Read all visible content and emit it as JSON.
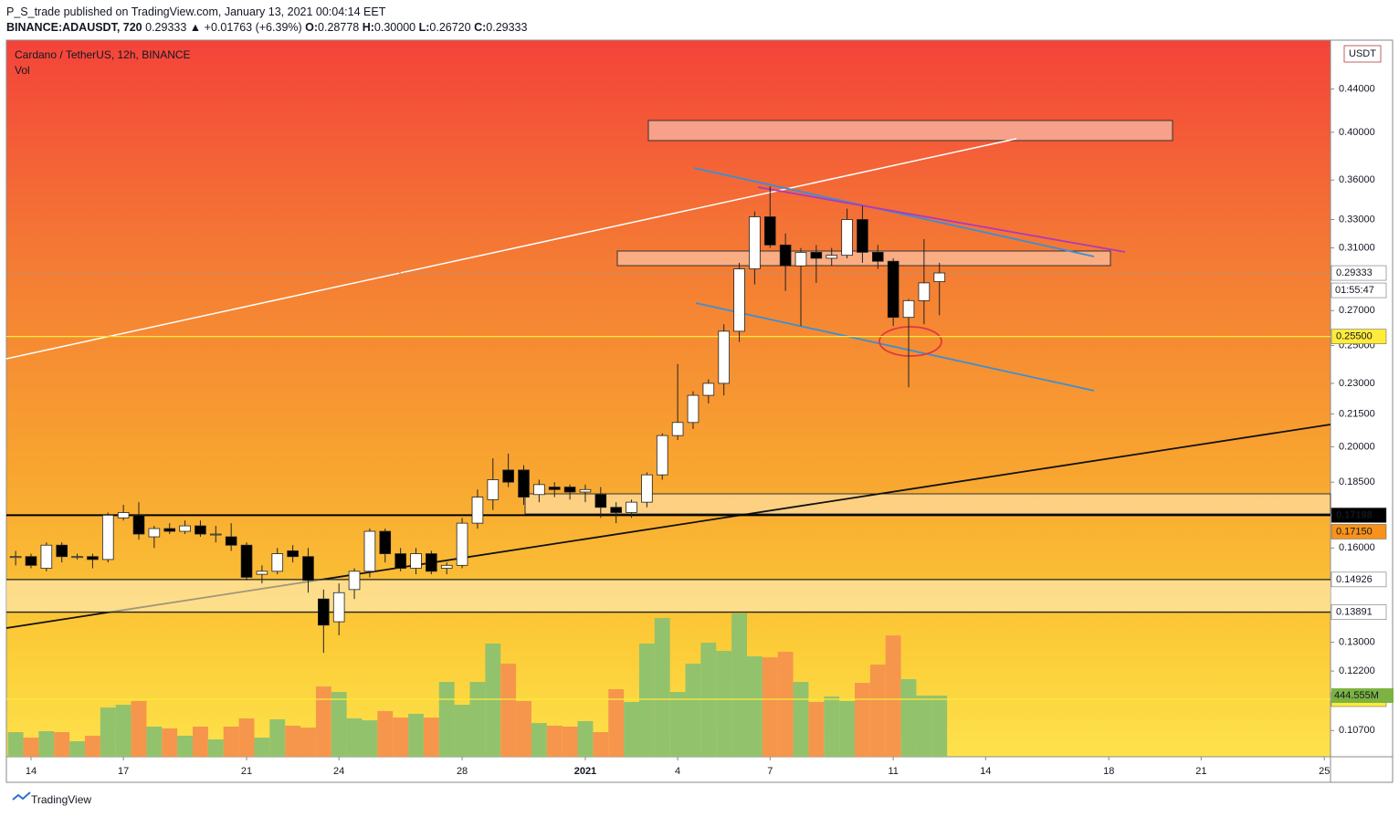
{
  "header": {
    "author": "P_S_trade",
    "published": "published on TradingView.com, January 13, 2021 00:04:14 EET",
    "symbol": "BINANCE:ADAUSDT, 720",
    "last": "0.29333",
    "change": "▲ +0.01763 (+6.39%)",
    "ohlc": [
      {
        "key": "O:",
        "value": "0.28778"
      },
      {
        "key": "H:",
        "value": "0.30000"
      },
      {
        "key": "L:",
        "value": "0.26720"
      },
      {
        "key": "C:",
        "value": "0.29333"
      }
    ]
  },
  "footer": {
    "brand": "TradingView"
  },
  "chart_data": {
    "type": "candlestick",
    "title": "Cardano / TetherUS, 12h, BINANCE",
    "volume_title": "Vol",
    "currency": "USDT",
    "log_scale": true,
    "ylim": [
      0.101,
      0.49
    ],
    "yticks": [
      {
        "value": 0.44,
        "label": "0.44000"
      },
      {
        "value": 0.4,
        "label": "0.40000"
      },
      {
        "value": 0.36,
        "label": "0.36000"
      },
      {
        "value": 0.33,
        "label": "0.33000"
      },
      {
        "value": 0.31,
        "label": "0.31000"
      },
      {
        "value": 0.27,
        "label": "0.27000"
      },
      {
        "value": 0.25,
        "label": "0.25000"
      },
      {
        "value": 0.23,
        "label": "0.23000"
      },
      {
        "value": 0.215,
        "label": "0.21500"
      },
      {
        "value": 0.2,
        "label": "0.20000"
      },
      {
        "value": 0.185,
        "label": "0.18500"
      },
      {
        "value": 0.16,
        "label": "0.16000"
      },
      {
        "value": 0.13,
        "label": "0.13000"
      },
      {
        "value": 0.122,
        "label": "0.12200"
      },
      {
        "value": 0.107,
        "label": "0.10700"
      }
    ],
    "categories": [
      null,
      "14",
      null,
      null,
      null,
      null,
      null,
      "17",
      null,
      null,
      null,
      null,
      null,
      null,
      null,
      "21",
      null,
      null,
      null,
      null,
      null,
      "24",
      null,
      null,
      null,
      null,
      null,
      null,
      null,
      "28",
      null,
      null,
      null,
      null,
      null,
      null,
      null,
      "2021",
      null,
      null,
      null,
      null,
      null,
      "4",
      null,
      null,
      null,
      null,
      null,
      "7",
      null,
      null,
      null,
      null,
      null,
      null,
      null,
      "11",
      null,
      null,
      null,
      null,
      null,
      "14",
      null,
      null,
      null,
      null,
      null,
      null,
      null,
      "18",
      null,
      null,
      null,
      null,
      null,
      "21",
      null,
      null,
      null,
      null,
      null,
      null,
      null,
      "25"
    ],
    "open": [
      0.157,
      0.157,
      0.153,
      0.161,
      0.157,
      0.157,
      0.156,
      0.171,
      0.172,
      0.164,
      0.167,
      0.166,
      0.168,
      0.165,
      0.164,
      0.161,
      0.151,
      0.152,
      0.159,
      0.157,
      0.143,
      0.136,
      0.146,
      0.152,
      0.166,
      0.158,
      0.153,
      0.158,
      0.153,
      0.154,
      0.169,
      0.178,
      0.19,
      0.19,
      0.18,
      0.183,
      0.183,
      0.181,
      0.18,
      0.175,
      0.173,
      0.177,
      0.188,
      0.205,
      0.211,
      0.224,
      0.23,
      0.258,
      0.296,
      0.332,
      0.312,
      0.298,
      0.307,
      0.303,
      0.305,
      0.33,
      0.307,
      0.301,
      0.266,
      0.276,
      0.28778,
      null,
      null,
      null,
      null,
      null,
      null,
      null,
      null,
      null,
      null,
      null,
      null,
      null,
      null,
      null,
      null,
      null,
      null,
      null,
      null,
      null,
      null,
      null,
      null,
      null
    ],
    "high": [
      0.159,
      0.158,
      0.162,
      0.162,
      0.158,
      0.158,
      0.173,
      0.176,
      0.177,
      0.168,
      0.169,
      0.17,
      0.17,
      0.168,
      0.169,
      0.162,
      0.154,
      0.16,
      0.161,
      0.16,
      0.146,
      0.148,
      0.153,
      0.167,
      0.167,
      0.16,
      0.16,
      0.159,
      0.155,
      0.171,
      0.182,
      0.195,
      0.197,
      0.192,
      0.186,
      0.185,
      0.184,
      0.184,
      0.183,
      0.177,
      0.178,
      0.189,
      0.206,
      0.24,
      0.226,
      0.232,
      0.262,
      0.3,
      0.336,
      0.355,
      0.32,
      0.31,
      0.312,
      0.31,
      0.338,
      0.34,
      0.312,
      0.303,
      0.277,
      0.316,
      0.3,
      null,
      null,
      null,
      null,
      null,
      null,
      null,
      null,
      null,
      null,
      null,
      null,
      null,
      null,
      null,
      null,
      null,
      null,
      null,
      null,
      null,
      null,
      null,
      null,
      null
    ],
    "low": [
      0.154,
      0.153,
      0.152,
      0.155,
      0.156,
      0.153,
      0.155,
      0.17,
      0.163,
      0.16,
      0.165,
      0.165,
      0.164,
      0.162,
      0.159,
      0.149,
      0.148,
      0.151,
      0.155,
      0.145,
      0.127,
      0.132,
      0.143,
      0.15,
      0.155,
      0.152,
      0.151,
      0.151,
      0.151,
      0.153,
      0.167,
      0.174,
      0.183,
      0.176,
      0.177,
      0.179,
      0.178,
      0.177,
      0.171,
      0.169,
      0.171,
      0.175,
      0.186,
      0.203,
      0.208,
      0.22,
      0.224,
      0.252,
      0.286,
      0.31,
      0.282,
      0.261,
      0.287,
      0.298,
      0.303,
      0.3,
      0.296,
      0.261,
      0.228,
      0.262,
      0.2672,
      null,
      null,
      null,
      null,
      null,
      null,
      null,
      null,
      null,
      null,
      null,
      null,
      null,
      null,
      null,
      null,
      null,
      null,
      null,
      null,
      null,
      null,
      null,
      null,
      null
    ],
    "close": [
      0.157,
      0.154,
      0.161,
      0.157,
      0.157,
      0.156,
      0.172,
      0.173,
      0.165,
      0.167,
      0.166,
      0.168,
      0.165,
      0.165,
      0.161,
      0.15,
      0.152,
      0.158,
      0.157,
      0.149,
      0.135,
      0.145,
      0.152,
      0.166,
      0.158,
      0.153,
      0.158,
      0.152,
      0.154,
      0.169,
      0.179,
      0.186,
      0.185,
      0.179,
      0.184,
      0.182,
      0.181,
      0.182,
      0.175,
      0.173,
      0.177,
      0.188,
      0.205,
      0.211,
      0.224,
      0.23,
      0.258,
      0.296,
      0.332,
      0.312,
      0.298,
      0.307,
      0.303,
      0.305,
      0.33,
      0.307,
      0.301,
      0.266,
      0.276,
      0.287,
      0.29333,
      null,
      null,
      null,
      null,
      null,
      null,
      null,
      null,
      null,
      null,
      null,
      null,
      null,
      null,
      null,
      null,
      null,
      null,
      null,
      null,
      null,
      null,
      null,
      null,
      null
    ],
    "volume": [
      179,
      139,
      186,
      179,
      113,
      153,
      358,
      378,
      405,
      219,
      206,
      153,
      219,
      126,
      219,
      279,
      139,
      272,
      226,
      212,
      511,
      471,
      279,
      265,
      332,
      285,
      312,
      285,
      544,
      378,
      544,
      823,
      677,
      405,
      245,
      226,
      219,
      259,
      179,
      491,
      398,
      823,
      1009,
      471,
      677,
      829,
      770,
      1042,
      730,
      723,
      763,
      544,
      398,
      438,
      405,
      537,
      670,
      882,
      564,
      445,
      444.555,
      null,
      null,
      null,
      null,
      null,
      null,
      null,
      null,
      null,
      null,
      null,
      null,
      null,
      null,
      null,
      null,
      null,
      null,
      null,
      null,
      null,
      null,
      null,
      null,
      null
    ],
    "volume_label": "444.555M",
    "up_color": "#ffffff",
    "down_color": "#000000",
    "volume_up_color": "#93c26c",
    "volume_down_color": "#f5964c",
    "levels": [
      {
        "value": 0.29333,
        "color": "#ffffff",
        "line": "dotted"
      },
      {
        "value": 0.255,
        "label": "0.25500",
        "color": "#ffeb3b",
        "line": "solid"
      },
      {
        "value": 0.17198,
        "color": "#000000",
        "line": "solid"
      },
      {
        "value": 0.1715,
        "label": "0.17150",
        "color": "#f7931a"
      },
      {
        "value": 0.14926,
        "color": "#ffffff",
        "line": "solid"
      },
      {
        "value": 0.13891,
        "color": "#ffffff",
        "line": "solid"
      },
      {
        "value": 0.11465,
        "color": "#ffeb3b",
        "line": "solid"
      }
    ],
    "countdown": "01:55:47"
  }
}
